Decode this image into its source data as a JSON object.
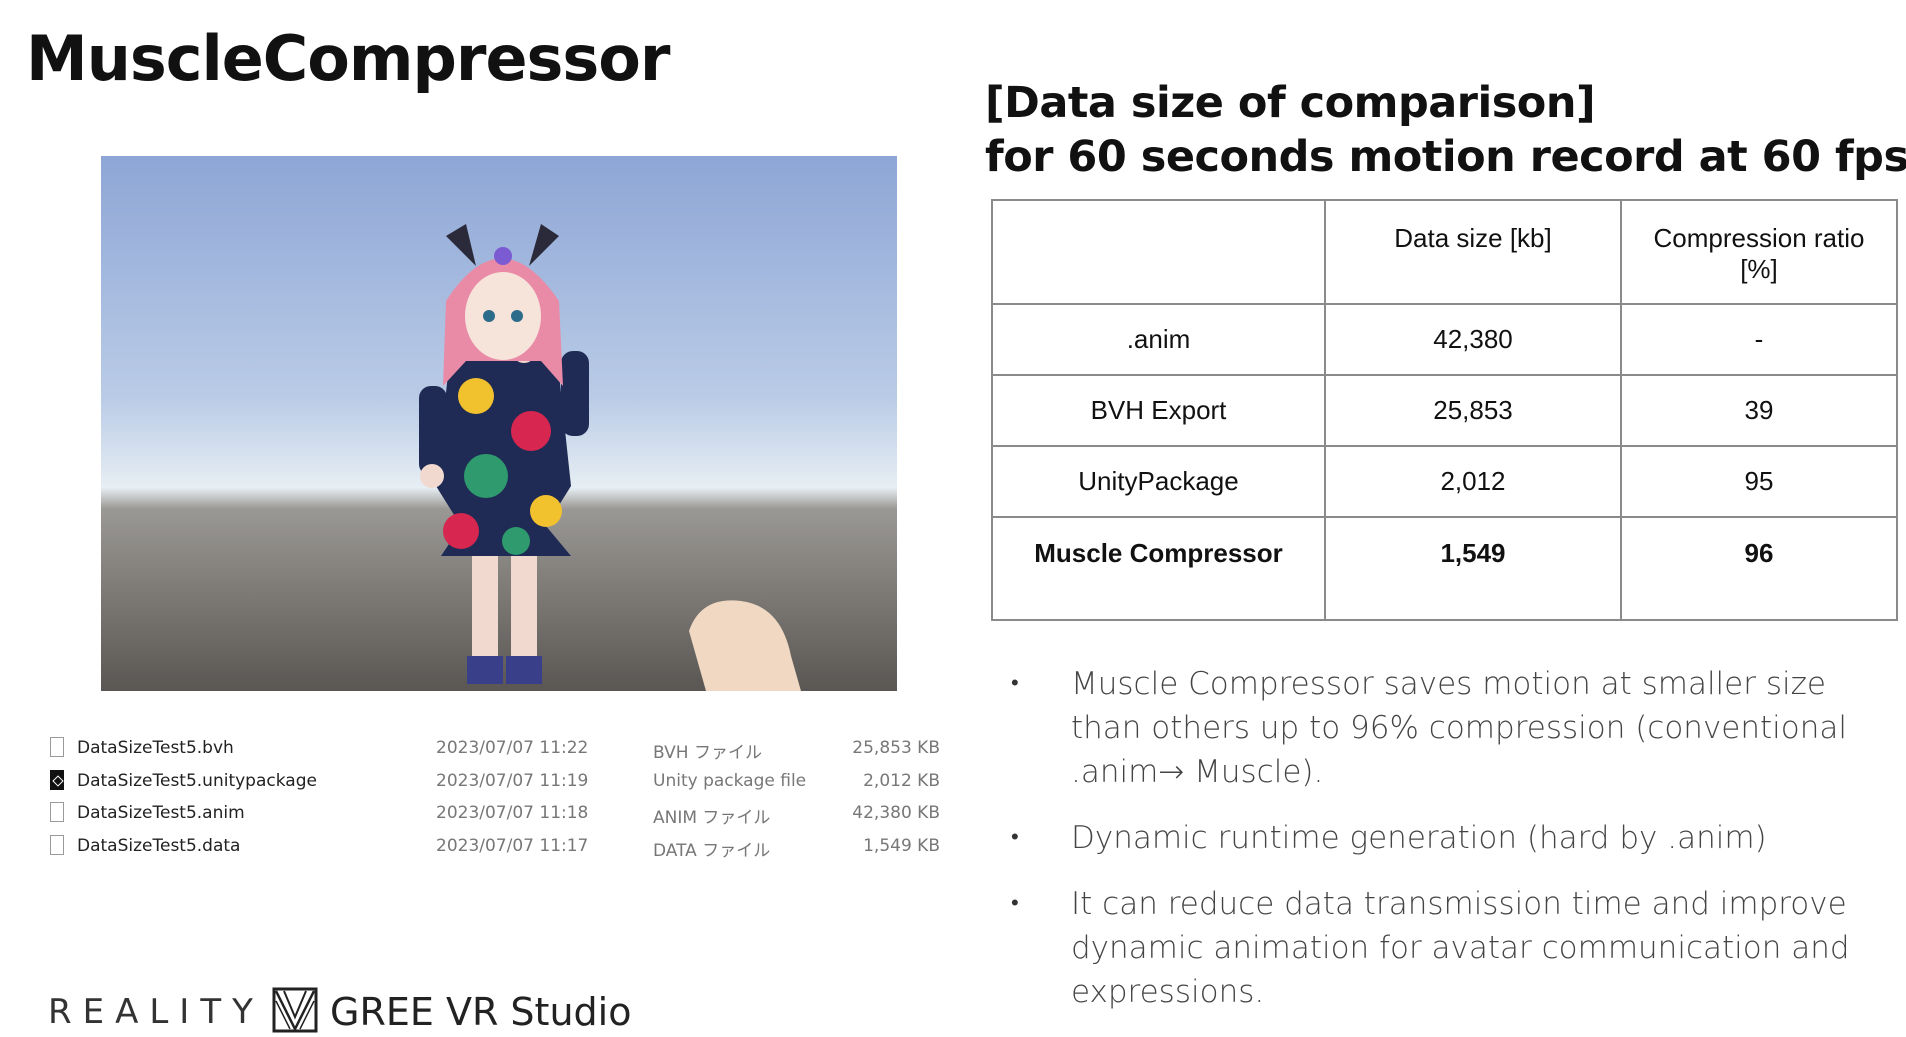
{
  "title": "MuscleCompressor",
  "files": [
    {
      "icon": "file-icon",
      "name": "DataSizeTest5.bvh",
      "date": "2023/07/07 11:22",
      "type": "BVH ファイル",
      "size": "25,853 KB"
    },
    {
      "icon": "unity-file-icon",
      "name": "DataSizeTest5.unitypackage",
      "date": "2023/07/07 11:19",
      "type": "Unity package file",
      "size": "2,012 KB"
    },
    {
      "icon": "file-icon",
      "name": "DataSizeTest5.anim",
      "date": "2023/07/07 11:18",
      "type": "ANIM ファイル",
      "size": "42,380 KB"
    },
    {
      "icon": "file-icon",
      "name": "DataSizeTest5.data",
      "date": "2023/07/07 11:17",
      "type": "DATA ファイル",
      "size": "1,549 KB"
    }
  ],
  "table": {
    "heading_line1": "[Data size of comparison]",
    "heading_line2": "for 60 seconds motion record at 60 fps",
    "headers": [
      "",
      "Data size [kb]",
      "Compression ratio [%]"
    ],
    "rows": [
      {
        "label": ".anim",
        "size": "42,380",
        "ratio": "-"
      },
      {
        "label": "BVH Export",
        "size": "25,853",
        "ratio": "39"
      },
      {
        "label": "UnityPackage",
        "size": "2,012",
        "ratio": "95"
      },
      {
        "label": "Muscle Compressor",
        "size": "1,549",
        "ratio": "96"
      }
    ]
  },
  "bullets": [
    "Muscle Compressor saves motion at smaller size than others up to 96% compression (conventional .anim→ Muscle).",
    "Dynamic runtime generation (hard by .anim)",
    "It can reduce data transmission time and improve dynamic animation for avatar communication and expressions."
  ],
  "logos": {
    "reality": "REALITY",
    "gree": "GREE VR Studio"
  }
}
